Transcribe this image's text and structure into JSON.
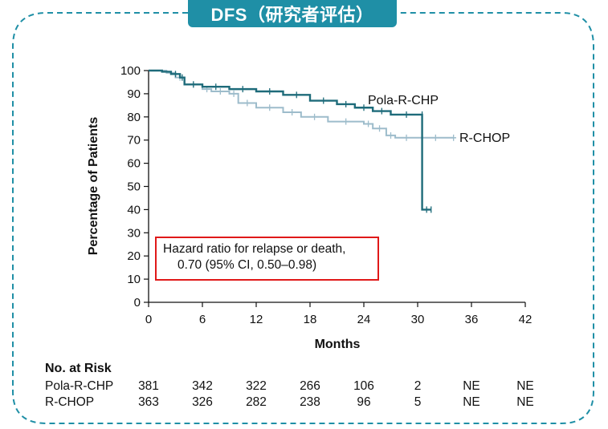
{
  "banner": {
    "title": "DFS（研究者评估）"
  },
  "colors": {
    "accent": "#1f8fa6",
    "pola": "#1e6b7a",
    "rchop": "#9dbccb",
    "highlight": "#e01919"
  },
  "chart_data": {
    "type": "line",
    "subtype": "kaplan-meier",
    "xlabel": "Months",
    "ylabel": "Percentage of Patients",
    "xlim": [
      0,
      42
    ],
    "ylim": [
      0,
      100
    ],
    "xticks": [
      0,
      6,
      12,
      18,
      24,
      30,
      36,
      42
    ],
    "yticks": [
      0,
      10,
      20,
      30,
      40,
      50,
      60,
      70,
      80,
      90,
      100
    ],
    "series": [
      {
        "name": "Pola-R-CHP",
        "x": [
          0,
          1.5,
          2.5,
          3.5,
          4,
          6,
          9,
          12,
          15,
          18,
          21,
          23,
          25,
          27,
          30.5,
          30.5,
          31.5
        ],
        "y": [
          100,
          99.5,
          98.5,
          97,
          94,
          93,
          92,
          91,
          89.5,
          87,
          85.5,
          84,
          82.5,
          81,
          81,
          40,
          40
        ]
      },
      {
        "name": "R-CHOP",
        "x": [
          0,
          2,
          3,
          4,
          6,
          7,
          9,
          10,
          12,
          15,
          17,
          20,
          24,
          25,
          26.5,
          27.5,
          30,
          34
        ],
        "y": [
          100,
          99,
          97,
          94,
          92,
          91,
          90,
          86,
          84,
          82,
          80,
          78,
          77,
          75,
          72,
          71,
          71,
          71
        ]
      }
    ],
    "annotation": {
      "line1": "Hazard ratio for relapse or death,",
      "line2": "0.70 (95% CI, 0.50–0.98)"
    }
  },
  "risk_table": {
    "title": "No. at Risk",
    "rows": [
      {
        "label": "Pola-R-CHP",
        "values": [
          "381",
          "342",
          "322",
          "266",
          "106",
          "2",
          "NE",
          "NE"
        ]
      },
      {
        "label": "R-CHOP",
        "values": [
          "363",
          "326",
          "282",
          "238",
          "96",
          "5",
          "NE",
          "NE"
        ]
      }
    ]
  }
}
